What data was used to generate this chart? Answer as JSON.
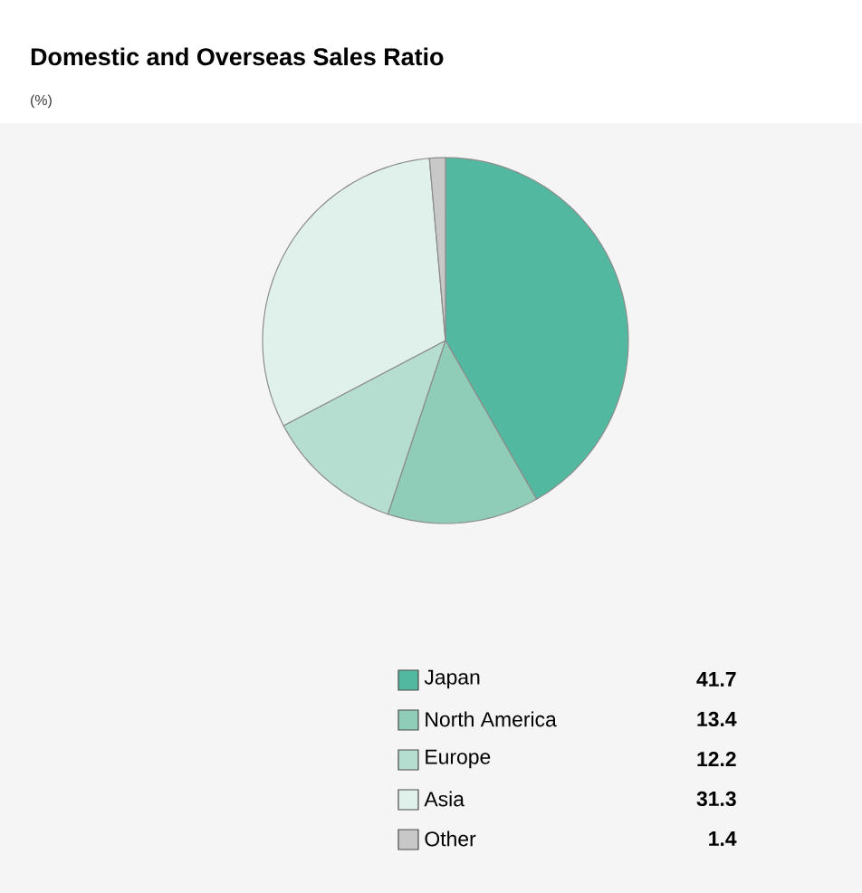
{
  "chart_data": {
    "type": "pie",
    "title": "Domestic and Overseas Sales Ratio",
    "subtitle": "(%)",
    "categories": [
      "Japan",
      "North America",
      "Europe",
      "Asia",
      "Other"
    ],
    "values": [
      41.7,
      13.4,
      12.2,
      31.3,
      1.4
    ],
    "colors": [
      "#52b8a0",
      "#8fcdb8",
      "#b5ddd0",
      "#e0f0ea",
      "#c8c8c8"
    ],
    "legend": "bottom",
    "data_labels": true
  }
}
